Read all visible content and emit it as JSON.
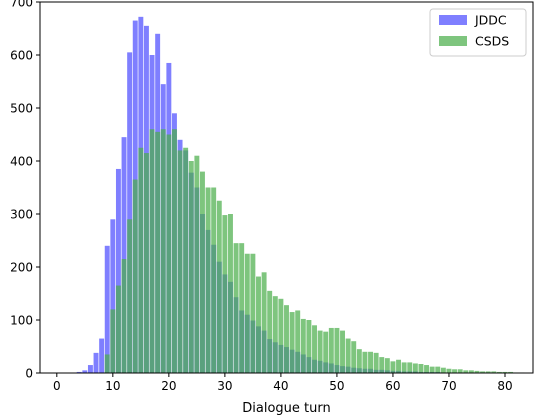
{
  "chart_data": {
    "type": "bar",
    "title": "",
    "xlabel": "Dialogue turn",
    "ylabel": "",
    "xlim": [
      -3,
      85
    ],
    "ylim": [
      0,
      700
    ],
    "xticks": [
      0,
      10,
      20,
      30,
      40,
      50,
      60,
      70,
      80
    ],
    "yticks": [
      0,
      100,
      200,
      300,
      400,
      500,
      600,
      700
    ],
    "grid": false,
    "legend": "top-right",
    "series": [
      {
        "name": "JDDC",
        "color": "#5b5bff",
        "x": [
          4,
          5,
          6,
          7,
          8,
          9,
          10,
          11,
          12,
          13,
          14,
          15,
          16,
          17,
          18,
          19,
          20,
          21,
          22,
          23,
          24,
          25,
          26,
          27,
          28,
          29,
          30,
          31,
          32,
          33,
          34,
          35,
          36,
          37,
          38,
          39,
          40,
          41,
          42,
          43,
          44,
          45,
          46,
          47,
          48,
          49,
          50,
          51,
          52,
          53,
          54,
          55,
          56,
          57,
          58,
          59,
          60,
          61,
          62,
          63,
          64,
          65,
          66,
          67,
          68,
          69,
          70,
          71,
          72,
          73,
          74,
          75,
          76,
          77,
          78,
          79,
          80,
          81,
          82,
          83
        ],
        "values": [
          2,
          5,
          15,
          38,
          65,
          240,
          290,
          385,
          445,
          605,
          665,
          672,
          655,
          600,
          640,
          545,
          585,
          490,
          440,
          420,
          378,
          350,
          300,
          270,
          242,
          210,
          186,
          172,
          143,
          118,
          110,
          99,
          88,
          80,
          64,
          58,
          53,
          49,
          44,
          40,
          35,
          30,
          25,
          23,
          20,
          18,
          15,
          13,
          12,
          10,
          9,
          8,
          8,
          6,
          6,
          5,
          4,
          4,
          3,
          3,
          3,
          2,
          2,
          2,
          2,
          1,
          1,
          1,
          1,
          1,
          1,
          1,
          1,
          1,
          0,
          0,
          0,
          0,
          0,
          0
        ]
      },
      {
        "name": "CSDS",
        "color": "#4caf4c",
        "x": [
          9,
          10,
          11,
          12,
          13,
          14,
          15,
          16,
          17,
          18,
          19,
          20,
          21,
          22,
          23,
          24,
          25,
          26,
          27,
          28,
          29,
          30,
          31,
          32,
          33,
          34,
          35,
          36,
          37,
          38,
          39,
          40,
          41,
          42,
          43,
          44,
          45,
          46,
          47,
          48,
          49,
          50,
          51,
          52,
          53,
          54,
          55,
          56,
          57,
          58,
          59,
          60,
          61,
          62,
          63,
          64,
          65,
          66,
          67,
          68,
          69,
          70,
          71,
          72,
          73,
          74,
          75,
          76,
          77,
          78,
          79,
          80,
          81,
          82,
          83
        ],
        "values": [
          35,
          120,
          165,
          215,
          290,
          365,
          425,
          415,
          460,
          455,
          460,
          450,
          460,
          420,
          425,
          400,
          410,
          380,
          350,
          350,
          325,
          298,
          300,
          245,
          245,
          225,
          225,
          182,
          190,
          155,
          145,
          140,
          128,
          115,
          118,
          102,
          100,
          90,
          80,
          78,
          85,
          85,
          80,
          65,
          60,
          45,
          40,
          40,
          38,
          30,
          28,
          22,
          25,
          20,
          20,
          18,
          17,
          15,
          12,
          12,
          10,
          8,
          7,
          7,
          5,
          5,
          4,
          3,
          3,
          3,
          2,
          2,
          2,
          1,
          1
        ]
      }
    ]
  }
}
